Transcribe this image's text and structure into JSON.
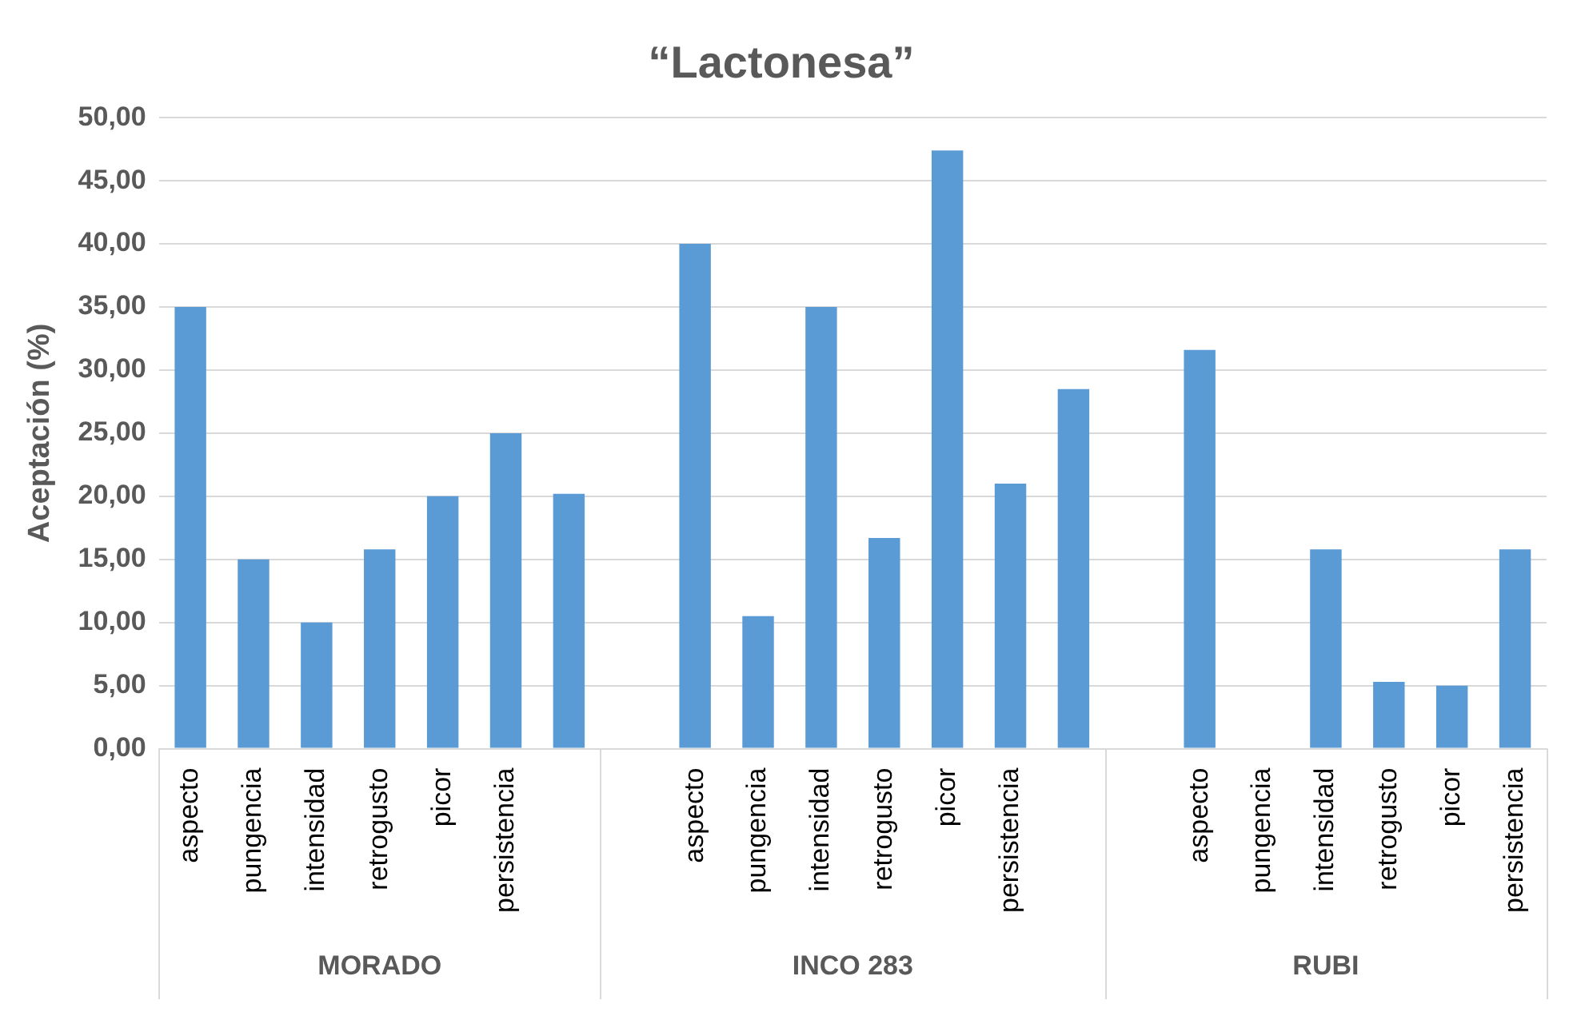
{
  "chart_data": {
    "type": "bar",
    "title": "“Lactonesa”",
    "ylabel": "Aceptación (%)",
    "categories": [
      "aspecto",
      "pungencia",
      "intensidad",
      "retrogusto",
      "picor",
      "persistencia",
      null,
      null,
      "aspecto",
      "pungencia",
      "intensidad",
      "retrogusto",
      "picor",
      "persistencia",
      null,
      null,
      "aspecto",
      "pungencia",
      "intensidad",
      "retrogusto",
      "picor",
      "persistencia"
    ],
    "values": [
      35,
      15,
      10,
      15.8,
      20,
      25,
      20.2,
      null,
      40,
      10.5,
      35,
      16.7,
      47.4,
      21,
      28.5,
      null,
      31.6,
      0,
      15.8,
      5.3,
      5,
      15.8
    ],
    "color": "#5b9bd5",
    "ylim": [
      0,
      50
    ],
    "yticks": [
      {
        "value": 0,
        "label": "0,00"
      },
      {
        "value": 5,
        "label": "5,00"
      },
      {
        "value": 10,
        "label": "10,00"
      },
      {
        "value": 15,
        "label": "15,00"
      },
      {
        "value": 20,
        "label": "20,00"
      },
      {
        "value": 25,
        "label": "25,00"
      },
      {
        "value": 30,
        "label": "30,00"
      },
      {
        "value": 35,
        "label": "35,00"
      },
      {
        "value": 40,
        "label": "40,00"
      },
      {
        "value": 45,
        "label": "45,00"
      },
      {
        "value": 50,
        "label": "50,00"
      }
    ],
    "grid": "y",
    "legend": false,
    "annotations": [
      "MORADO",
      "INCO 283",
      "RUBI"
    ]
  }
}
